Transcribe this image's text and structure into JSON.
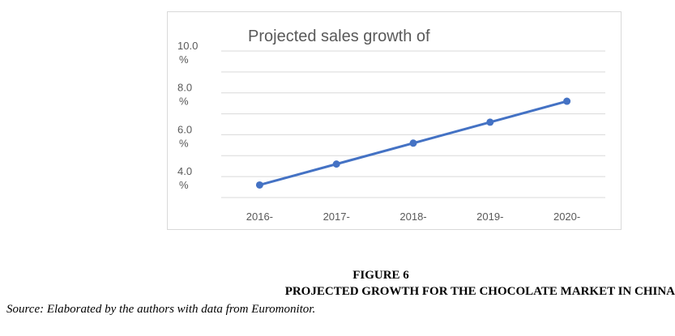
{
  "chart_data": {
    "type": "line",
    "title": "Projected sales growth of",
    "categories": [
      "2016-",
      "2017-",
      "2018-",
      "2019-",
      "2020-"
    ],
    "y_ticks": [
      {
        "value": 4.0,
        "label_line1": "4.0",
        "label_line2": "%"
      },
      {
        "value": 6.0,
        "label_line1": "6.0",
        "label_line2": "%"
      },
      {
        "value": 8.0,
        "label_line1": "8.0",
        "label_line2": "%"
      },
      {
        "value": 10.0,
        "label_line1": "10.0",
        "label_line2": "%"
      }
    ],
    "ylim": [
      3.0,
      10.0
    ],
    "series": [
      {
        "values": [
          3.6,
          4.6,
          5.6,
          6.6,
          7.6
        ],
        "color": "#4472c4"
      }
    ],
    "grid": true,
    "gridline_color": "#d9d9d9",
    "text_color": "#595959"
  },
  "caption": {
    "figure_number": "FIGURE 6",
    "figure_title": "PROJECTED GROWTH FOR THE CHOCOLATE MARKET IN CHINA",
    "source": "Source: Elaborated by the authors with data from Euromonitor."
  }
}
